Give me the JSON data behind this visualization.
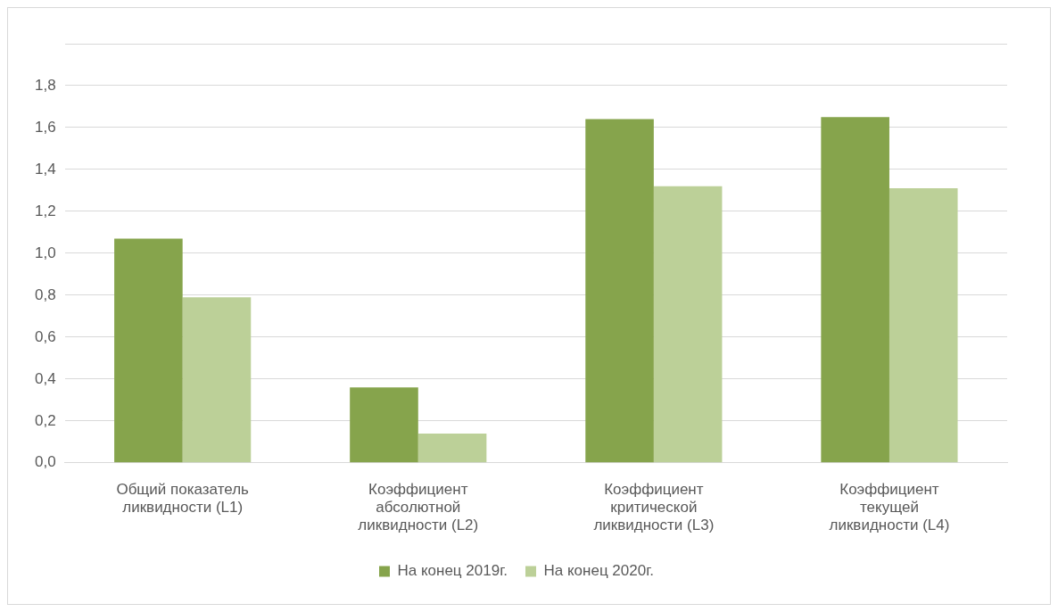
{
  "chart_data": {
    "type": "bar",
    "categories": [
      "Общий показатель ликвидности (L1)",
      "Коэффициент абсолютной ликвидности (L2)",
      "Коэффициент критической ликвидности (L3)",
      "Коэффициент текущей ликвидности (L4)"
    ],
    "series": [
      {
        "name": "На конец 2019г.",
        "color": "#86a44c",
        "values": [
          1.07,
          0.36,
          1.64,
          1.65
        ]
      },
      {
        "name": "На конец 2020г.",
        "color": "#bcd098",
        "values": [
          0.79,
          0.14,
          1.32,
          1.31
        ]
      }
    ],
    "ylim": [
      0,
      2
    ],
    "yticks": [
      {
        "value": 0,
        "label": "0,0"
      },
      {
        "value": 0.2,
        "label": "0,2"
      },
      {
        "value": 0.4,
        "label": "0,4"
      },
      {
        "value": 0.6,
        "label": "0,6"
      },
      {
        "value": 0.8,
        "label": "0,8"
      },
      {
        "value": 1,
        "label": "1,0"
      },
      {
        "value": 1.2,
        "label": "1,2"
      },
      {
        "value": 1.4,
        "label": "1,4"
      },
      {
        "value": 1.6,
        "label": "1,6"
      },
      {
        "value": 1.8,
        "label": "1,8"
      },
      {
        "value": 2,
        "label": null
      }
    ],
    "grid": "y",
    "legend": "bottom"
  }
}
